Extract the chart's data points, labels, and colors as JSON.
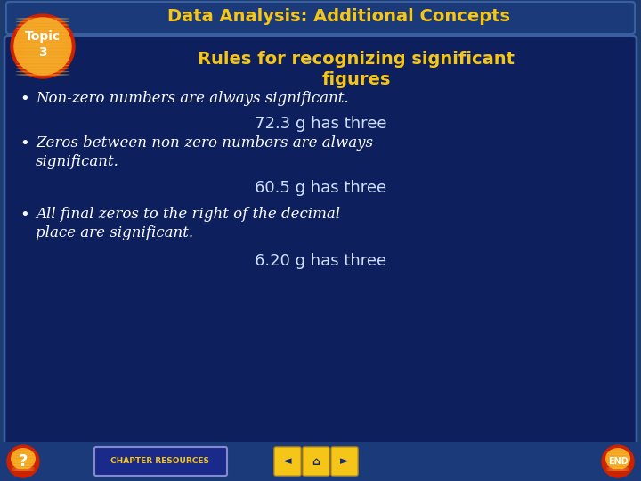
{
  "bg_outer": "#1c3b6e",
  "bg_content": "#0d1f5c",
  "bg_content2": "#0a1845",
  "title_bar_bg": "#1a3a7a",
  "border_color": "#3a5fa0",
  "title_text": "Data Analysis: Additional Concepts",
  "title_color": "#f5c518",
  "subtitle_text": "Rules for recognizing significant\nfigures",
  "subtitle_color": "#f5c518",
  "topic_red": "#cc2200",
  "topic_orange": "#f5a020",
  "topic_stripe": "#f0b030",
  "topic_text": "Topic\n3",
  "topic_text_color": "#ffffff",
  "bullet_text_color": "#ffffff",
  "bullets": [
    "Non-zero numbers are always significant.",
    "Zeros between non-zero numbers are always\nsignificant.",
    "All final zeros to the right of the decimal\nplace are significant."
  ],
  "examples": [
    "72.3 g has three",
    "60.5 g has three",
    "6.20 g has three"
  ],
  "example_color": "#d0e0ff",
  "bottom_bg": "#1a3a7a",
  "btn_red": "#cc2200",
  "btn_orange": "#f5a020",
  "btn_yellow": "#f5c518",
  "chapter_btn_bg": "#1a2a8a",
  "chapter_btn_border": "#3a5fa0",
  "chapter_text": "CHAPTER RESOURCES"
}
